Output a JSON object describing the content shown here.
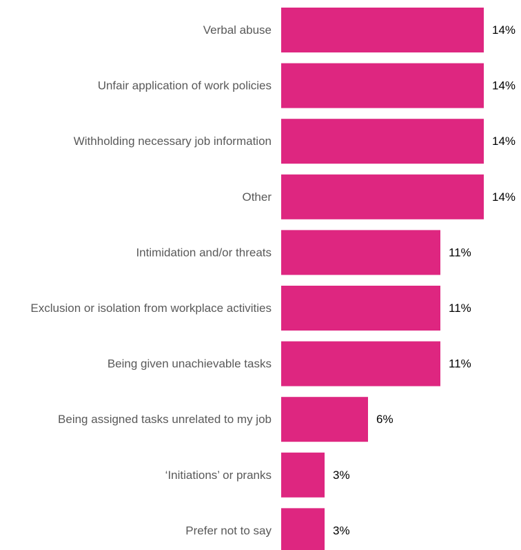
{
  "chart_data": {
    "type": "bar",
    "orientation": "horizontal",
    "categories": [
      "Verbal abuse",
      "Unfair application of work policies",
      "Withholding necessary job information",
      "Other",
      "Intimidation and/or threats",
      "Exclusion or isolation from workplace activities",
      "Being given unachievable tasks",
      "Being assigned tasks unrelated to my job",
      "‘Initiations’ or pranks",
      "Prefer not to say"
    ],
    "values": [
      14,
      14,
      14,
      14,
      11,
      11,
      11,
      6,
      3,
      3
    ],
    "value_labels": [
      "14%",
      "14%",
      "14%",
      "14%",
      "11%",
      "11%",
      "11%",
      "6%",
      "3%",
      "3%"
    ],
    "unit": "%",
    "xlim": [
      0,
      14
    ],
    "grid": false,
    "legend": "none",
    "bar_color": "#DE2680"
  }
}
